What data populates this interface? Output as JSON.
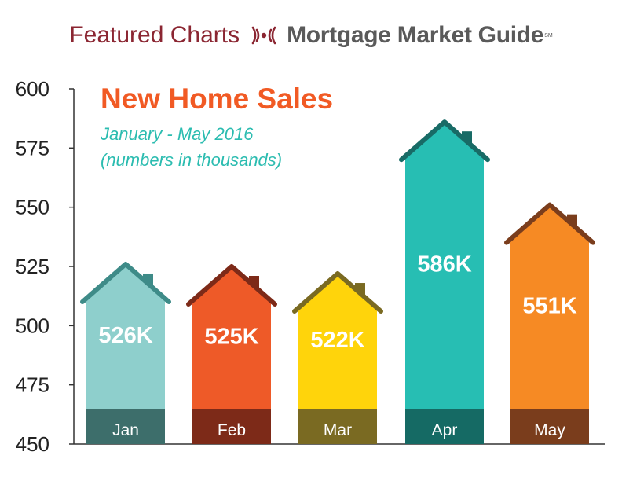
{
  "header": {
    "featured": "Featured Charts",
    "brand": "Mortgage Market Guide",
    "brand_mark": "SM",
    "brand_icon": "signal-waves-icon",
    "featured_color": "#8b2632",
    "brand_color": "#5a5a5a"
  },
  "chart_data": {
    "type": "bar",
    "title": "New Home Sales",
    "subtitle_line1": "January - May 2016",
    "subtitle_line2": "(numbers in thousands)",
    "categories": [
      "Jan",
      "Feb",
      "Mar",
      "Apr",
      "May"
    ],
    "values": [
      526,
      525,
      522,
      586,
      551
    ],
    "data_labels": [
      "526K",
      "525K",
      "522K",
      "586K",
      "551K"
    ],
    "ylim": [
      450,
      600
    ],
    "yticks": [
      450,
      475,
      500,
      525,
      550,
      575,
      600
    ],
    "bar_shape": "house",
    "colors": [
      {
        "body": "#8ecfcc",
        "roof": "#3e8b88",
        "base": "#3d6e6b"
      },
      {
        "body": "#ee5a28",
        "roof": "#7d2a18",
        "base": "#7d2a18"
      },
      {
        "body": "#ffd40b",
        "roof": "#7a6a22",
        "base": "#7a6a22"
      },
      {
        "body": "#27beb3",
        "roof": "#186b66",
        "base": "#156a64"
      },
      {
        "body": "#f68a24",
        "roof": "#7a3d1c",
        "base": "#7a3d1c"
      }
    ],
    "grid": false
  }
}
